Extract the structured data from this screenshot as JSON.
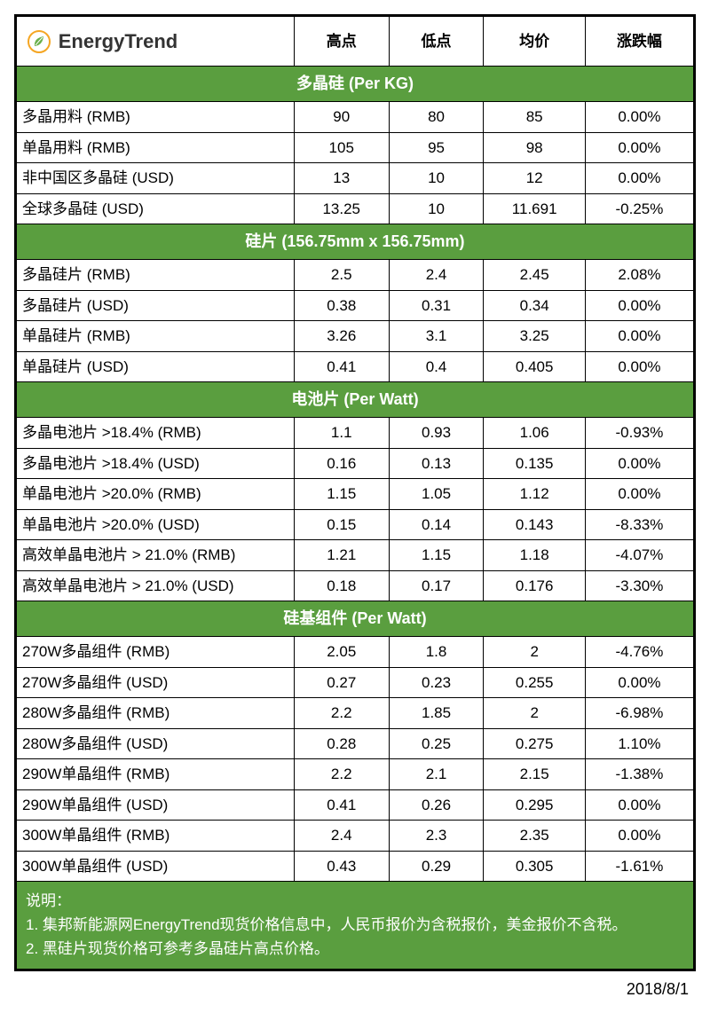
{
  "brand": "EnergyTrend",
  "headers": {
    "high": "高点",
    "low": "低点",
    "avg": "均价",
    "chg": "涨跌幅"
  },
  "colors": {
    "section_bg": "#5a9e3f",
    "section_fg": "#ffffff",
    "border": "#000000"
  },
  "sections": [
    {
      "title": "多晶硅 (Per KG)",
      "rows": [
        {
          "name": "多晶用料 (RMB)",
          "high": "90",
          "low": "80",
          "avg": "85",
          "chg": "0.00%"
        },
        {
          "name": "单晶用料 (RMB)",
          "high": "105",
          "low": "95",
          "avg": "98",
          "chg": "0.00%"
        },
        {
          "name": "非中国区多晶硅 (USD)",
          "high": "13",
          "low": "10",
          "avg": "12",
          "chg": "0.00%"
        },
        {
          "name": "全球多晶硅 (USD)",
          "high": "13.25",
          "low": "10",
          "avg": "11.691",
          "chg": "-0.25%"
        }
      ]
    },
    {
      "title": "硅片 (156.75mm x 156.75mm)",
      "rows": [
        {
          "name": "多晶硅片 (RMB)",
          "high": "2.5",
          "low": "2.4",
          "avg": "2.45",
          "chg": "2.08%"
        },
        {
          "name": "多晶硅片 (USD)",
          "high": "0.38",
          "low": "0.31",
          "avg": "0.34",
          "chg": "0.00%"
        },
        {
          "name": "单晶硅片 (RMB)",
          "high": "3.26",
          "low": "3.1",
          "avg": "3.25",
          "chg": "0.00%"
        },
        {
          "name": "单晶硅片 (USD)",
          "high": "0.41",
          "low": "0.4",
          "avg": "0.405",
          "chg": "0.00%"
        }
      ]
    },
    {
      "title": "电池片 (Per Watt)",
      "rows": [
        {
          "name": "多晶电池片  >18.4% (RMB)",
          "high": "1.1",
          "low": "0.93",
          "avg": "1.06",
          "chg": "-0.93%"
        },
        {
          "name": "多晶电池片  >18.4% (USD)",
          "high": "0.16",
          "low": "0.13",
          "avg": "0.135",
          "chg": "0.00%"
        },
        {
          "name": "单晶电池片 >20.0% (RMB)",
          "high": "1.15",
          "low": "1.05",
          "avg": "1.12",
          "chg": "0.00%"
        },
        {
          "name": "单晶电池片 >20.0% (USD)",
          "high": "0.15",
          "low": "0.14",
          "avg": "0.143",
          "chg": "-8.33%"
        },
        {
          "name": "高效单晶电池片 > 21.0% (RMB)",
          "high": "1.21",
          "low": "1.15",
          "avg": "1.18",
          "chg": "-4.07%"
        },
        {
          "name": "高效单晶电池片 > 21.0% (USD)",
          "high": "0.18",
          "low": "0.17",
          "avg": "0.176",
          "chg": "-3.30%"
        }
      ]
    },
    {
      "title": "硅基组件 (Per Watt)",
      "rows": [
        {
          "name": "270W多晶组件 (RMB)",
          "high": "2.05",
          "low": "1.8",
          "avg": "2",
          "chg": "-4.76%"
        },
        {
          "name": "270W多晶组件 (USD)",
          "high": "0.27",
          "low": "0.23",
          "avg": "0.255",
          "chg": "0.00%"
        },
        {
          "name": "280W多晶组件 (RMB)",
          "high": "2.2",
          "low": "1.85",
          "avg": "2",
          "chg": "-6.98%"
        },
        {
          "name": "280W多晶组件 (USD)",
          "high": "0.28",
          "low": "0.25",
          "avg": "0.275",
          "chg": "1.10%"
        },
        {
          "name": "290W单晶组件 (RMB)",
          "high": "2.2",
          "low": "2.1",
          "avg": "2.15",
          "chg": "-1.38%"
        },
        {
          "name": "290W单晶组件 (USD)",
          "high": "0.41",
          "low": "0.26",
          "avg": "0.295",
          "chg": "0.00%"
        },
        {
          "name": "300W单晶组件 (RMB)",
          "high": "2.4",
          "low": "2.3",
          "avg": "2.35",
          "chg": "0.00%"
        },
        {
          "name": "300W单晶组件 (USD)",
          "high": "0.43",
          "low": "0.29",
          "avg": "0.305",
          "chg": "-1.61%"
        }
      ]
    }
  ],
  "notes": {
    "title": "说明：",
    "lines": [
      "1. 集邦新能源网EnergyTrend现货价格信息中，人民币报价为含税报价，美金报价不含税。",
      "2. 黑硅片现货价格可参考多晶硅片高点价格。"
    ]
  },
  "date": "2018/8/1"
}
